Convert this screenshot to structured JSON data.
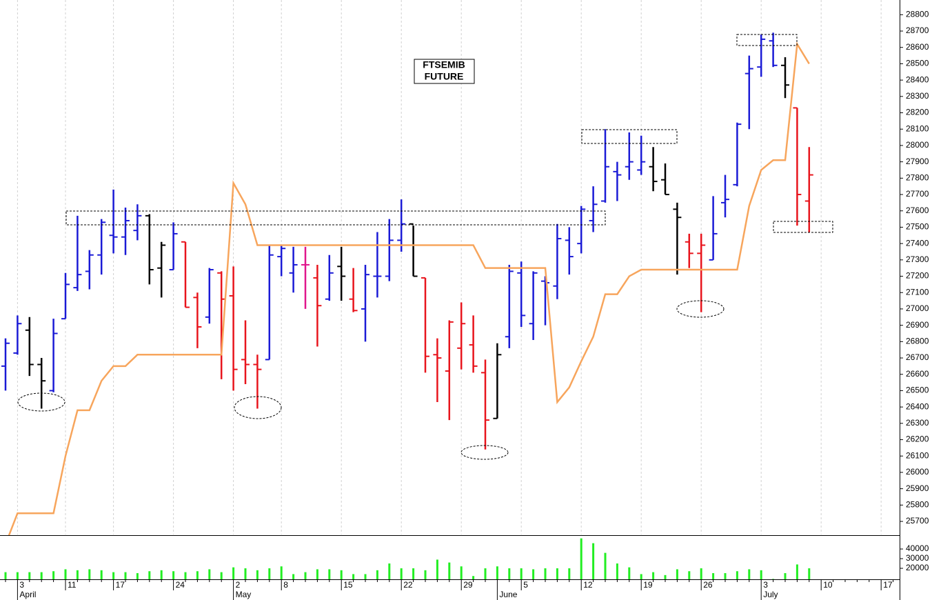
{
  "chart_data": {
    "type": "ohlc",
    "title": "FTSEMIB",
    "subtitle": "FUTURE",
    "categories": [
      null,
      "3",
      null,
      null,
      null,
      "11",
      null,
      null,
      null,
      "17",
      null,
      null,
      null,
      null,
      "24",
      null,
      null,
      null,
      null,
      "2",
      null,
      null,
      null,
      "8",
      null,
      null,
      null,
      null,
      "15",
      null,
      null,
      null,
      null,
      "22",
      null,
      null,
      null,
      null,
      "29",
      null,
      null,
      null,
      null,
      "5",
      null,
      null,
      null,
      null,
      "12",
      null,
      null,
      null,
      null,
      "19",
      null,
      null,
      null,
      null,
      "26",
      null,
      null,
      null,
      null,
      "3",
      null,
      null,
      null,
      null,
      "10",
      null,
      null,
      null,
      null,
      "17",
      null
    ],
    "month_labels": [
      null,
      "April",
      null,
      null,
      null,
      null,
      null,
      null,
      null,
      null,
      null,
      null,
      null,
      null,
      null,
      null,
      null,
      null,
      null,
      "May",
      null,
      null,
      null,
      null,
      null,
      null,
      null,
      null,
      null,
      null,
      null,
      null,
      null,
      null,
      null,
      null,
      null,
      null,
      null,
      null,
      null,
      "June",
      null,
      null,
      null,
      null,
      null,
      null,
      null,
      null,
      null,
      null,
      null,
      null,
      null,
      null,
      null,
      null,
      null,
      null,
      null,
      null,
      null,
      "July",
      null,
      null,
      null,
      null,
      null,
      null,
      null,
      null,
      null,
      null,
      null
    ],
    "open": [
      26650,
      26730,
      26870,
      26660,
      26500,
      26940,
      27130,
      27230,
      27330,
      27450,
      27440,
      27480,
      27570,
      27250,
      27240,
      27410,
      27070,
      26950,
      27220,
      27080,
      26690,
      26660,
      26690,
      27320,
      27220,
      27270,
      27190,
      27060,
      27260,
      27060,
      27000,
      27200,
      27200,
      27420,
      27520,
      27190,
      26720,
      26620,
      26760,
      26780,
      26610,
      26330,
      26830,
      27220,
      26910,
      27170,
      27140,
      27420,
      27400,
      27540,
      27660,
      27840,
      27870,
      27850,
      27870,
      27790,
      27610,
      27410,
      27340,
      27300,
      27650,
      27760,
      28440,
      28480,
      28640,
      28490,
      28230,
      27660,
      null,
      null,
      null,
      null,
      null,
      null,
      null
    ],
    "high": [
      26820,
      26960,
      26950,
      26700,
      26940,
      27220,
      27570,
      27360,
      27550,
      27730,
      27620,
      27640,
      27580,
      27410,
      27530,
      27410,
      27100,
      27250,
      27230,
      27260,
      26930,
      26720,
      27390,
      27390,
      27380,
      27380,
      27270,
      27330,
      27380,
      27250,
      27270,
      27470,
      27550,
      27670,
      27510,
      27190,
      26820,
      26930,
      27040,
      26960,
      26690,
      26790,
      27270,
      27290,
      27230,
      27200,
      27520,
      27500,
      27630,
      27750,
      28100,
      27900,
      28080,
      28060,
      27990,
      27890,
      27650,
      27460,
      27460,
      27690,
      27820,
      28140,
      28550,
      28680,
      28690,
      28540,
      28230,
      27990,
      null,
      null,
      null,
      null,
      null,
      null,
      null
    ],
    "low": [
      26500,
      26720,
      26590,
      26390,
      26490,
      26940,
      27110,
      27120,
      27210,
      27340,
      27330,
      27420,
      27150,
      27070,
      27240,
      27010,
      26760,
      26910,
      26570,
      26500,
      26540,
      26390,
      26690,
      27200,
      27100,
      27000,
      26770,
      27050,
      27050,
      26980,
      26800,
      27070,
      27170,
      27350,
      27200,
      26610,
      26430,
      26320,
      26630,
      26610,
      26140,
      26330,
      26760,
      26890,
      26810,
      26900,
      27060,
      27210,
      27340,
      27470,
      27650,
      27660,
      27790,
      27820,
      27720,
      27700,
      27210,
      27250,
      26980,
      27300,
      27560,
      27750,
      28100,
      28420,
      28480,
      28290,
      27510,
      27470,
      null,
      null,
      null,
      null,
      null,
      null,
      null
    ],
    "close": [
      26790,
      26910,
      26660,
      26560,
      26850,
      27150,
      27210,
      27330,
      27530,
      27440,
      27540,
      27570,
      27240,
      27390,
      27460,
      27010,
      26890,
      27240,
      27060,
      26630,
      26660,
      26630,
      27330,
      27370,
      27270,
      27270,
      27020,
      27220,
      27200,
      26990,
      27210,
      27200,
      27420,
      27520,
      27200,
      26710,
      26700,
      26920,
      26910,
      26650,
      26320,
      26720,
      27230,
      26960,
      27220,
      27160,
      27430,
      27320,
      27610,
      27640,
      27870,
      27820,
      27900,
      27900,
      27780,
      27700,
      27560,
      27340,
      27390,
      27460,
      27670,
      28130,
      28470,
      28650,
      28490,
      28370,
      27700,
      27820,
      null,
      null,
      null,
      null,
      null,
      null,
      null
    ],
    "colors": [
      "#1a1ad6",
      "#1a1ad6",
      "#000000",
      "#000000",
      "#1a1ad6",
      "#1a1ad6",
      "#1a1ad6",
      "#1a1ad6",
      "#1a1ad6",
      "#1a1ad6",
      "#1a1ad6",
      "#1a1ad6",
      "#000000",
      "#000000",
      "#1a1ad6",
      "#e8141c",
      "#e8141c",
      "#1a1ad6",
      "#e8141c",
      "#e8141c",
      "#e8141c",
      "#e8141c",
      "#1a1ad6",
      "#1a1ad6",
      "#1a1ad6",
      "#e0158c",
      "#e8141c",
      "#1a1ad6",
      "#000000",
      "#e8141c",
      "#1a1ad6",
      "#1a1ad6",
      "#1a1ad6",
      "#1a1ad6",
      "#000000",
      "#e8141c",
      "#e8141c",
      "#e8141c",
      "#e8141c",
      "#e8141c",
      "#e8141c",
      "#000000",
      "#1a1ad6",
      "#1a1ad6",
      "#1a1ad6",
      "#1a1ad6",
      "#1a1ad6",
      "#1a1ad6",
      "#1a1ad6",
      "#1a1ad6",
      "#1a1ad6",
      "#1a1ad6",
      "#1a1ad6",
      "#1a1ad6",
      "#000000",
      "#000000",
      "#000000",
      "#e8141c",
      "#e8141c",
      "#1a1ad6",
      "#1a1ad6",
      "#1a1ad6",
      "#1a1ad6",
      "#1a1ad6",
      "#1a1ad6",
      "#000000",
      "#e8141c",
      "#e8141c",
      null,
      null,
      null,
      null,
      null,
      null,
      null
    ],
    "indicator": {
      "color": "#f7a55c",
      "values": [
        25560,
        25750,
        25750,
        25750,
        25750,
        26100,
        26380,
        26380,
        26560,
        26650,
        26650,
        26720,
        26720,
        26720,
        26720,
        26720,
        26720,
        26720,
        26720,
        27770,
        27640,
        27390,
        27390,
        27390,
        27390,
        27390,
        27390,
        27390,
        27390,
        27390,
        27390,
        27390,
        27390,
        27390,
        27390,
        27390,
        27390,
        27390,
        27390,
        27390,
        27250,
        27250,
        27250,
        27250,
        27250,
        27250,
        26430,
        26520,
        26680,
        26830,
        27090,
        27090,
        27200,
        27240,
        27240,
        27240,
        27240,
        27240,
        27240,
        27240,
        27240,
        27240,
        27630,
        27850,
        27910,
        27910,
        28620,
        28500,
        null,
        null,
        null,
        null,
        null,
        null,
        null
      ]
    },
    "ylim": [
      25620,
      28890
    ],
    "yticks": [
      25700,
      25800,
      25900,
      26000,
      26100,
      26200,
      26300,
      26400,
      26500,
      26600,
      26700,
      26800,
      26900,
      27000,
      27100,
      27200,
      27300,
      27400,
      27500,
      27600,
      27700,
      27800,
      27900,
      28000,
      28100,
      28200,
      28300,
      28400,
      28500,
      28600,
      28700,
      28800
    ],
    "grid": true,
    "volume": {
      "color": "#22ee22",
      "values": [
        16000,
        16000,
        16000,
        16000,
        17000,
        19000,
        18000,
        19000,
        18000,
        16000,
        16000,
        15000,
        17000,
        18000,
        17000,
        16000,
        17000,
        19000,
        16000,
        21000,
        20000,
        18000,
        20000,
        22000,
        14000,
        16000,
        19000,
        19000,
        18000,
        14000,
        14000,
        18000,
        25000,
        20000,
        20000,
        18000,
        29000,
        26000,
        22000,
        12000,
        20000,
        22000,
        20000,
        20000,
        19000,
        20000,
        20000,
        20000,
        51000,
        46000,
        36000,
        25000,
        21000,
        14000,
        16000,
        13000,
        19000,
        17000,
        20000,
        15000,
        15000,
        17000,
        19000,
        18000,
        9000,
        15000,
        24000,
        20000,
        null,
        null,
        null,
        null,
        null,
        null,
        null
      ],
      "ylim": [
        8600,
        53600
      ],
      "yticks": [
        20000,
        30000,
        40000
      ]
    }
  }
}
